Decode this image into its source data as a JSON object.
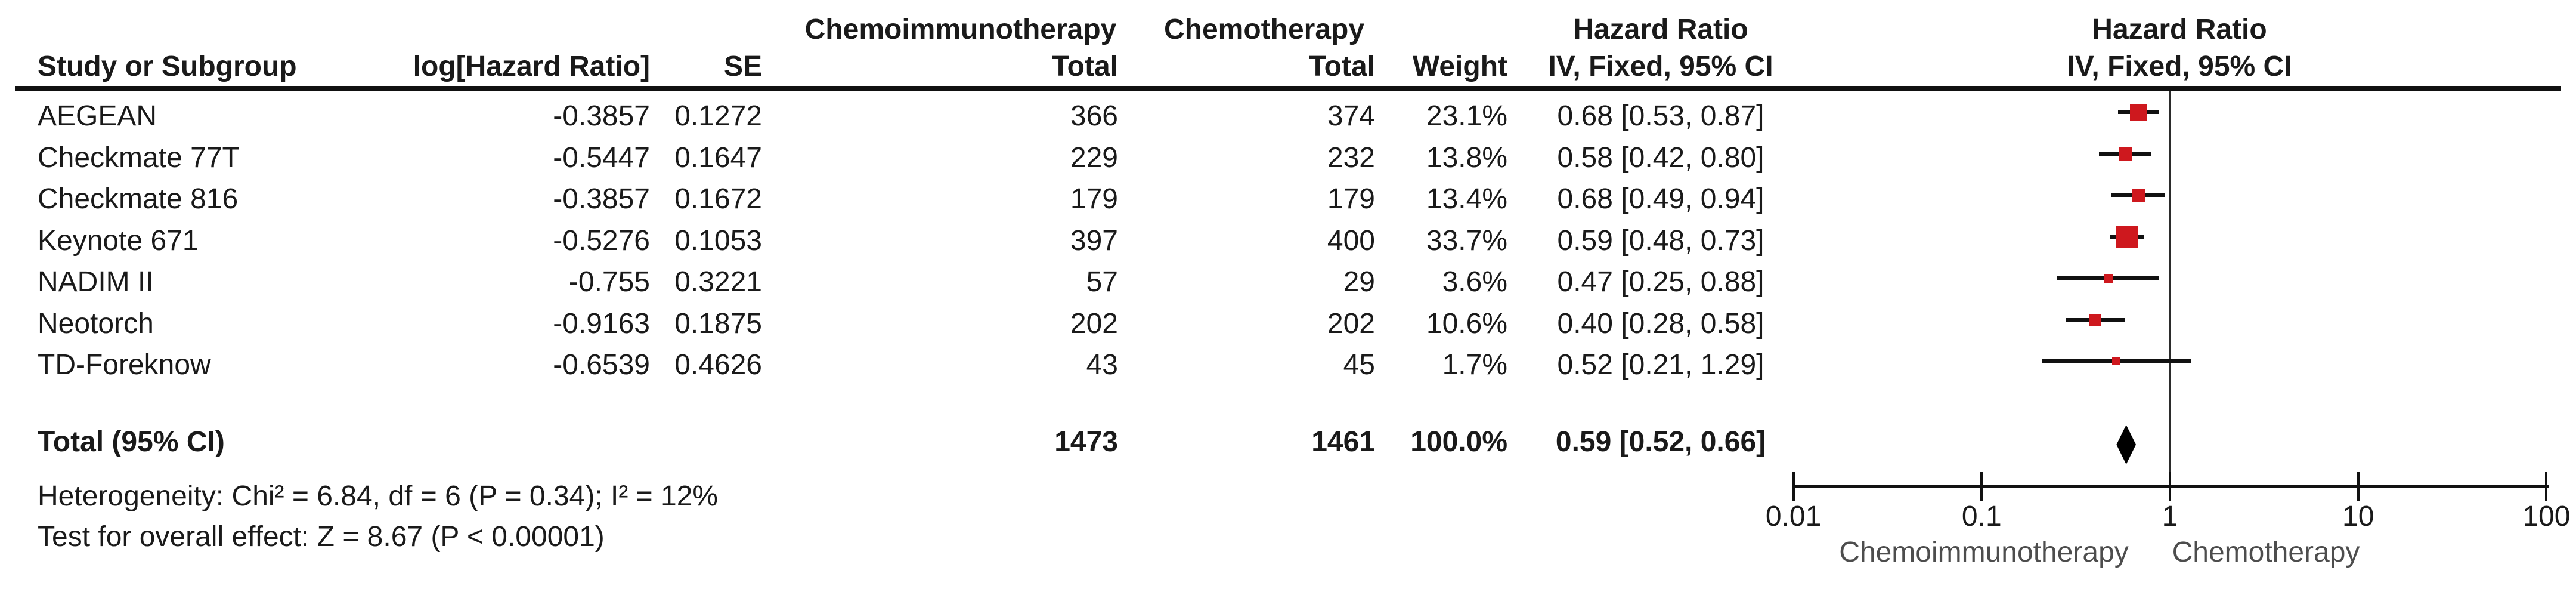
{
  "header": {
    "group1": "Chemoimmunotherapy",
    "group2": "Chemotherapy",
    "hr_col_title": "Hazard Ratio",
    "hr_plot_title": "Hazard Ratio",
    "col_study": "Study or Subgroup",
    "col_loghr": "log[Hazard Ratio]",
    "col_se": "SE",
    "col_total": "Total",
    "col_weight": "Weight",
    "col_ci": "IV, Fixed, 95% CI",
    "col_ci_plot": "IV, Fixed, 95% CI"
  },
  "total_row": {
    "label": "Total (95% CI)",
    "total_treatment": "1473",
    "total_control": "1461",
    "weight": "100.0%",
    "ci_text": "0.59 [0.52, 0.66]"
  },
  "footnotes": {
    "heterogeneity": "Heterogeneity: Chi² = 6.84, df = 6 (P = 0.34); I² = 12%",
    "overall_effect": "Test for overall effect: Z = 8.67 (P < 0.00001)"
  },
  "chart_data": {
    "type": "forest",
    "effect_measure": "Hazard Ratio",
    "model": "IV, Fixed, 95% CI",
    "x_scale": "log10",
    "axis_ticks": [
      0.01,
      0.1,
      1,
      10,
      100
    ],
    "axis_range": [
      0.01,
      100
    ],
    "null_line": 1,
    "favours_left": "Chemoimmunotherapy",
    "favours_right": "Chemotherapy",
    "marker_color": "#CE181E",
    "line_color": "#111111",
    "studies": [
      {
        "name": "AEGEAN",
        "log_hr": "-0.3857",
        "se": "0.1272",
        "total_treatment": "366",
        "total_control": "374",
        "weight": "23.1%",
        "weight_pct": 23.1,
        "ci_text": "0.68 [0.53, 0.87]",
        "hr": 0.68,
        "ci_low": 0.53,
        "ci_high": 0.87
      },
      {
        "name": "Checkmate 77T",
        "log_hr": "-0.5447",
        "se": "0.1647",
        "total_treatment": "229",
        "total_control": "232",
        "weight": "13.8%",
        "weight_pct": 13.8,
        "ci_text": "0.58 [0.42, 0.80]",
        "hr": 0.58,
        "ci_low": 0.42,
        "ci_high": 0.8
      },
      {
        "name": "Checkmate 816",
        "log_hr": "-0.3857",
        "se": "0.1672",
        "total_treatment": "179",
        "total_control": "179",
        "weight": "13.4%",
        "weight_pct": 13.4,
        "ci_text": "0.68 [0.49, 0.94]",
        "hr": 0.68,
        "ci_low": 0.49,
        "ci_high": 0.94
      },
      {
        "name": "Keynote 671",
        "log_hr": "-0.5276",
        "se": "0.1053",
        "total_treatment": "397",
        "total_control": "400",
        "weight": "33.7%",
        "weight_pct": 33.7,
        "ci_text": "0.59 [0.48, 0.73]",
        "hr": 0.59,
        "ci_low": 0.48,
        "ci_high": 0.73
      },
      {
        "name": "NADIM II",
        "log_hr": "-0.755",
        "se": "0.3221",
        "total_treatment": "57",
        "total_control": "29",
        "weight": "3.6%",
        "weight_pct": 3.6,
        "ci_text": "0.47 [0.25, 0.88]",
        "hr": 0.47,
        "ci_low": 0.25,
        "ci_high": 0.88
      },
      {
        "name": "Neotorch",
        "log_hr": "-0.9163",
        "se": "0.1875",
        "total_treatment": "202",
        "total_control": "202",
        "weight": "10.6%",
        "weight_pct": 10.6,
        "ci_text": "0.40 [0.28, 0.58]",
        "hr": 0.4,
        "ci_low": 0.28,
        "ci_high": 0.58
      },
      {
        "name": "TD-Foreknow",
        "log_hr": "-0.6539",
        "se": "0.4626",
        "total_treatment": "43",
        "total_control": "45",
        "weight": "1.7%",
        "weight_pct": 1.7,
        "ci_text": "0.52 [0.21, 1.29]",
        "hr": 0.52,
        "ci_low": 0.21,
        "ci_high": 1.29
      }
    ],
    "total": {
      "hr": 0.59,
      "ci_low": 0.52,
      "ci_high": 0.66
    }
  }
}
